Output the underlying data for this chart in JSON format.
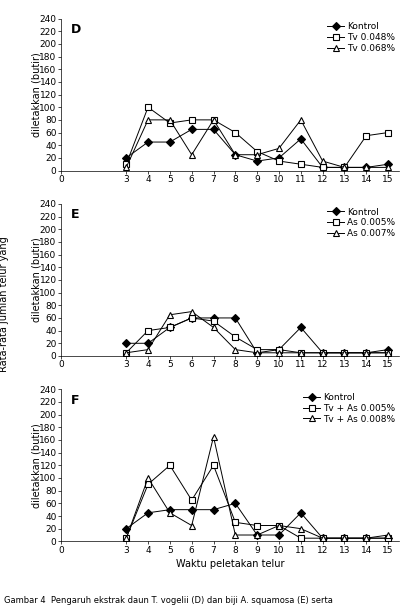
{
  "x": [
    3,
    4,
    5,
    6,
    7,
    8,
    9,
    10,
    11,
    12,
    13,
    14,
    15
  ],
  "panel_D": {
    "label": "D",
    "kontrol": [
      20,
      45,
      45,
      65,
      65,
      25,
      15,
      20,
      50,
      5,
      5,
      5,
      10
    ],
    "tv_048": [
      10,
      100,
      75,
      80,
      80,
      60,
      30,
      15,
      10,
      5,
      5,
      55,
      60
    ],
    "tv_068": [
      5,
      80,
      80,
      25,
      80,
      25,
      25,
      35,
      80,
      15,
      5,
      5,
      5
    ],
    "legend": [
      "Kontrol",
      "Tv 0.048%",
      "Tv 0.068%"
    ]
  },
  "panel_E": {
    "label": "E",
    "kontrol": [
      20,
      20,
      45,
      60,
      60,
      60,
      5,
      10,
      45,
      5,
      5,
      5,
      10
    ],
    "as_005": [
      5,
      40,
      45,
      60,
      55,
      30,
      10,
      10,
      5,
      5,
      5,
      5,
      5
    ],
    "as_007": [
      5,
      10,
      65,
      70,
      45,
      10,
      5,
      5,
      5,
      5,
      5,
      5,
      5
    ],
    "legend": [
      "Kontrol",
      "As 0.005%",
      "As 0.007%"
    ]
  },
  "panel_F": {
    "label": "F",
    "kontrol": [
      20,
      45,
      50,
      50,
      50,
      60,
      10,
      10,
      45,
      5,
      5,
      5,
      5
    ],
    "tv_as_005": [
      5,
      90,
      120,
      65,
      120,
      30,
      25,
      25,
      5,
      5,
      5,
      5,
      5
    ],
    "tv_as_008": [
      5,
      100,
      45,
      25,
      165,
      10,
      10,
      25,
      20,
      5,
      5,
      5,
      10
    ],
    "legend": [
      "Kontrol",
      "Tv + As 0.005%",
      "Tv + As 0.008%"
    ]
  },
  "yticks": [
    0,
    20,
    40,
    60,
    80,
    100,
    120,
    140,
    160,
    180,
    200,
    220,
    240
  ],
  "xlim": [
    1.5,
    15.5
  ],
  "ylim": [
    0,
    240
  ],
  "xlabel": "Waktu peletakan telur",
  "ylabel_top": "Rata-rata jumlah telur yang",
  "ylabel_bottom": "diletakkan (butir)",
  "caption": "Gambar 4  Pengaruh ekstrak daun T. vogelii (D) dan biji A. squamosa (E) serta",
  "bg_color": "#ffffff",
  "fontsize_tick": 6.5,
  "fontsize_label": 7,
  "fontsize_legend": 6.5,
  "fontsize_panel": 9,
  "fontsize_caption": 6
}
